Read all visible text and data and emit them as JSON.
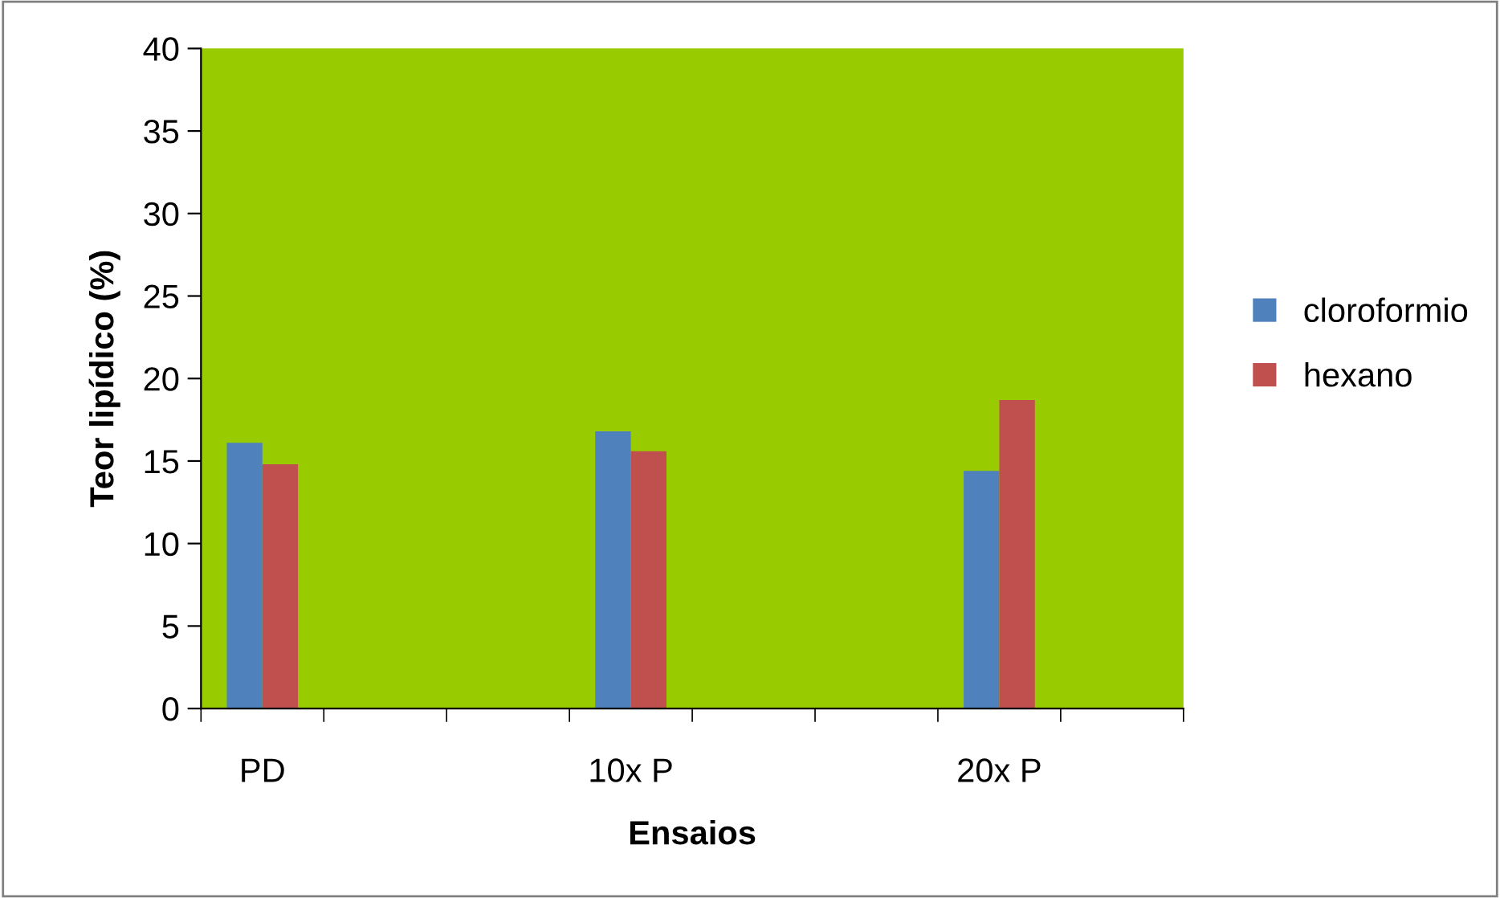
{
  "chart_data": {
    "type": "bar",
    "xlabel": "Ensaios",
    "ylabel": "Teor lipídico (%)",
    "categories": [
      "PD",
      null,
      null,
      "10x P",
      null,
      null,
      "20x P",
      null
    ],
    "series": [
      {
        "name": "cloroformio",
        "color": "#4f81bd",
        "values": [
          16.1,
          null,
          null,
          16.8,
          null,
          null,
          14.4,
          null
        ]
      },
      {
        "name": "hexano",
        "color": "#c0504d",
        "values": [
          14.8,
          null,
          null,
          15.6,
          null,
          null,
          18.7,
          null
        ]
      }
    ],
    "ylim": [
      0,
      40
    ],
    "yticks": [
      0,
      5,
      10,
      15,
      20,
      25,
      30,
      35,
      40
    ],
    "grid": false,
    "legend": "right"
  }
}
